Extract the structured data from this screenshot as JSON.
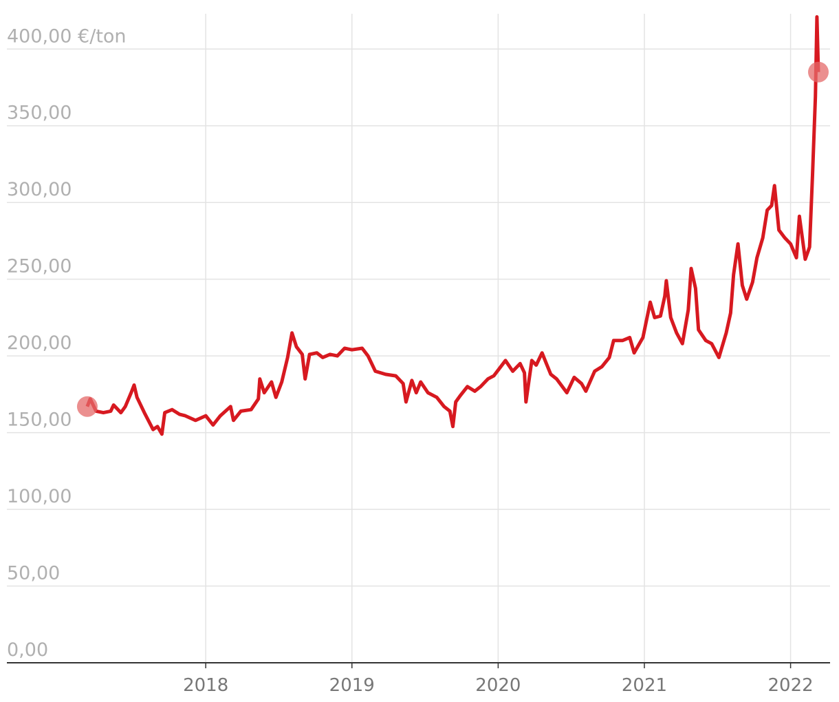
{
  "chart_data": {
    "type": "line",
    "x": [
      2017.19,
      2017.21,
      2017.25,
      2017.3,
      2017.35,
      2017.37,
      2017.42,
      2017.45,
      2017.49,
      2017.51,
      2017.53,
      2017.58,
      2017.64,
      2017.67,
      2017.7,
      2017.72,
      2017.77,
      2017.82,
      2017.86,
      2017.93,
      2018.0,
      2018.05,
      2018.1,
      2018.17,
      2018.19,
      2018.24,
      2018.31,
      2018.36,
      2018.37,
      2018.4,
      2018.45,
      2018.48,
      2018.52,
      2018.56,
      2018.59,
      2018.62,
      2018.66,
      2018.68,
      2018.71,
      2018.76,
      2018.8,
      2018.85,
      2018.9,
      2018.95,
      2019.0,
      2019.07,
      2019.11,
      2019.16,
      2019.23,
      2019.3,
      2019.35,
      2019.37,
      2019.41,
      2019.44,
      2019.47,
      2019.52,
      2019.58,
      2019.63,
      2019.67,
      2019.69,
      2019.71,
      2019.74,
      2019.79,
      2019.84,
      2019.88,
      2019.93,
      2019.97,
      2020.05,
      2020.1,
      2020.15,
      2020.18,
      2020.19,
      2020.23,
      2020.26,
      2020.3,
      2020.33,
      2020.36,
      2020.4,
      2020.47,
      2020.52,
      2020.57,
      2020.6,
      2020.66,
      2020.71,
      2020.76,
      2020.79,
      2020.85,
      2020.9,
      2020.93,
      2020.99,
      2021.04,
      2021.07,
      2021.11,
      2021.14,
      2021.15,
      2021.18,
      2021.22,
      2021.26,
      2021.3,
      2021.32,
      2021.35,
      2021.37,
      2021.42,
      2021.46,
      2021.51,
      2021.56,
      2021.59,
      2021.61,
      2021.64,
      2021.67,
      2021.7,
      2021.74,
      2021.77,
      2021.81,
      2021.84,
      2021.87,
      2021.89,
      2021.92,
      2021.96,
      2022.0,
      2022.04,
      2022.06,
      2022.1,
      2022.13,
      2022.15,
      2022.17,
      2022.18,
      2022.19
    ],
    "series": [
      {
        "color": "#d71920",
        "values": [
          167,
          172,
          164,
          163,
          164,
          168,
          163,
          167,
          176,
          181,
          173,
          163,
          152,
          154,
          149,
          163,
          165,
          162,
          161,
          158,
          161,
          155,
          161,
          167,
          158,
          164,
          165,
          172,
          185,
          176,
          183,
          173,
          183,
          199,
          215,
          206,
          201,
          185,
          201,
          202,
          199,
          201,
          200,
          205,
          204,
          205,
          200,
          190,
          188,
          187,
          182,
          170,
          184,
          176,
          183,
          176,
          173,
          167,
          164,
          154,
          170,
          174,
          180,
          177,
          180,
          185,
          187,
          197,
          190,
          195,
          189,
          170,
          197,
          194,
          202,
          195,
          188,
          185,
          176,
          186,
          182,
          177,
          190,
          193,
          199,
          210,
          210,
          212,
          202,
          212,
          235,
          225,
          226,
          239,
          249,
          225,
          215,
          208,
          230,
          257,
          244,
          217,
          210,
          208,
          199,
          215,
          228,
          253,
          273,
          246,
          237,
          248,
          264,
          277,
          295,
          298,
          311,
          282,
          277,
          273,
          264,
          291,
          263,
          271,
          318,
          369,
          421,
          385
        ]
      }
    ],
    "xlim": [
      2016.64,
      2022.27
    ],
    "xticks": [
      2018,
      2019,
      2020,
      2021,
      2022
    ],
    "ylim": [
      0,
      423
    ],
    "yticks": [
      {
        "value": 0,
        "label": "0,00"
      },
      {
        "value": 50,
        "label": "50,00"
      },
      {
        "value": 100,
        "label": "100,00"
      },
      {
        "value": 150,
        "label": "150,00"
      },
      {
        "value": 200,
        "label": "200,00"
      },
      {
        "value": 250,
        "label": "250,00"
      },
      {
        "value": 300,
        "label": "300,00"
      },
      {
        "value": 350,
        "label": "350,00"
      },
      {
        "value": 400,
        "label": "400,00 €/ton"
      }
    ],
    "grid": true,
    "endpoint_color": "#e46a6a"
  }
}
